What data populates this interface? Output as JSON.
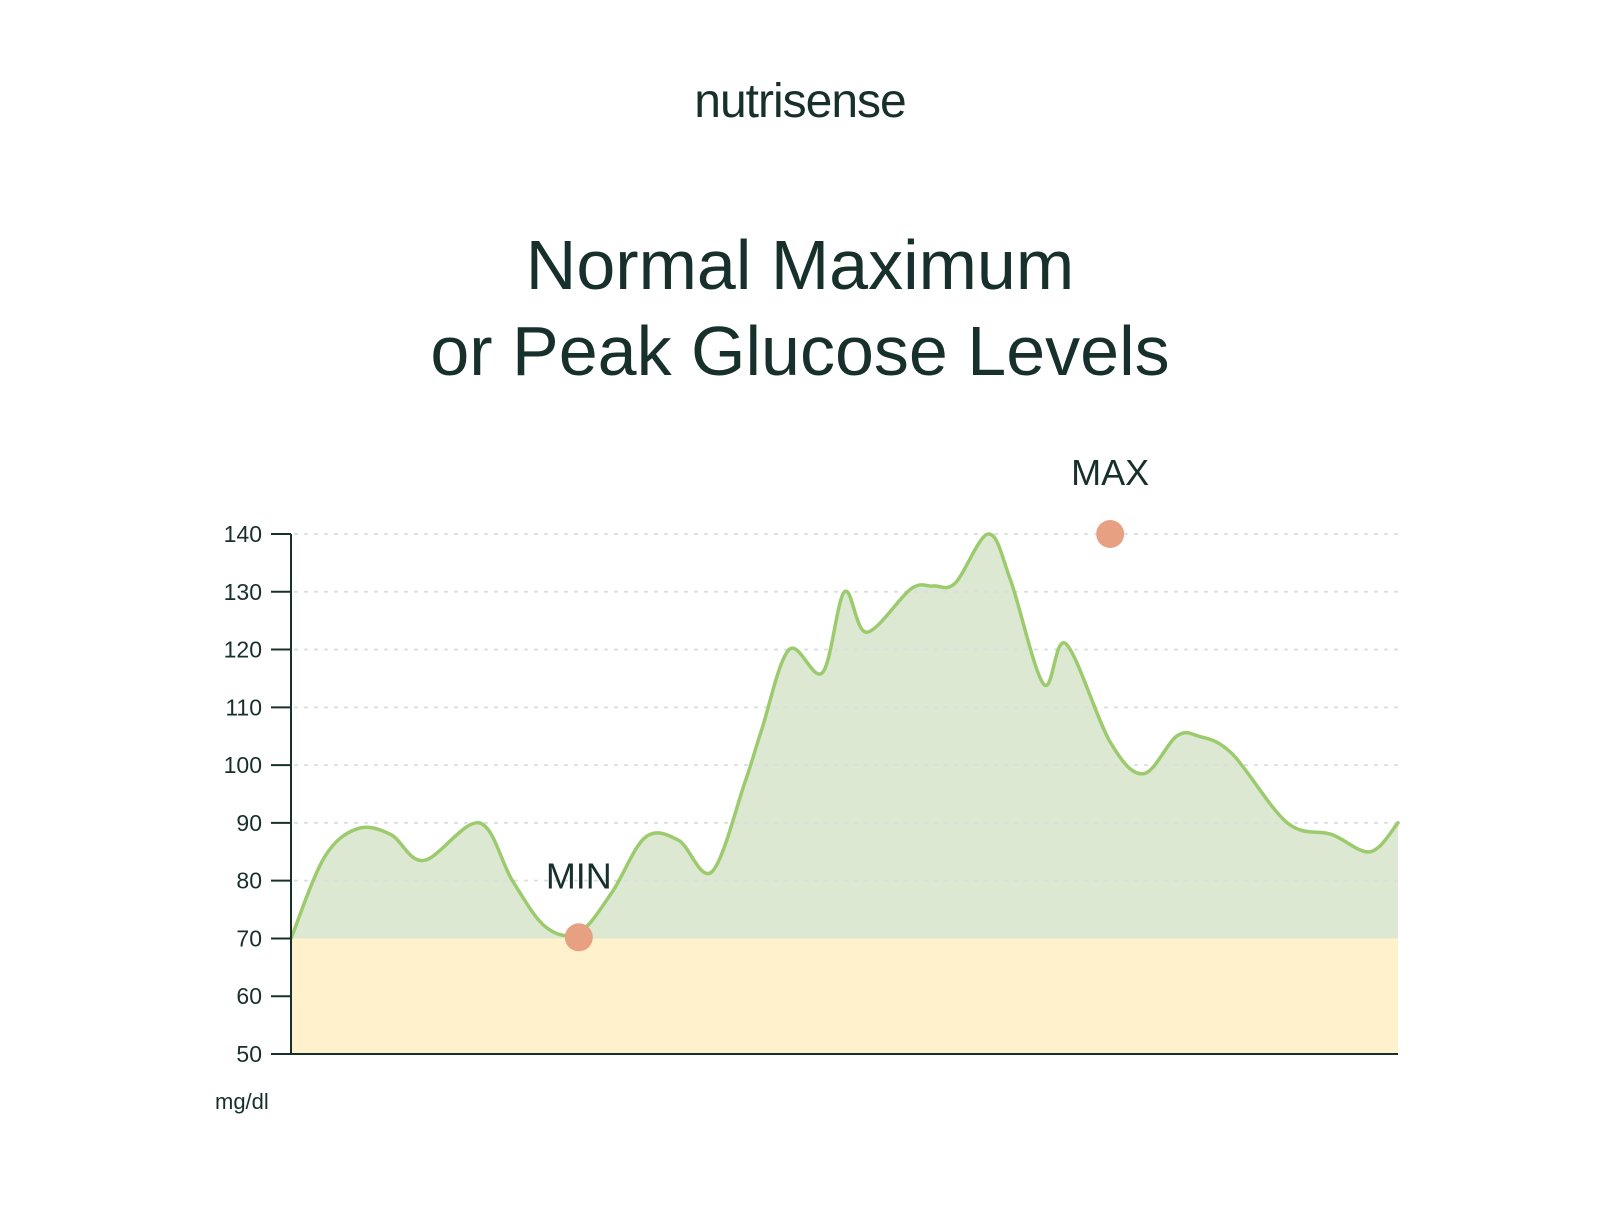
{
  "brand": {
    "logo_text": "nutrisense"
  },
  "title": {
    "line1": "Normal Maximum",
    "line2": "or Peak Glucose Levels"
  },
  "colors": {
    "text": "#17302c",
    "line": "#9ccb6e",
    "area_fill": "#dce8d2",
    "low_band": "#fef1cb",
    "marker": "#e8a083",
    "grid": "#d9dde0",
    "axis": "#17302c"
  },
  "chart_data": {
    "type": "area",
    "title": "Normal Maximum or Peak Glucose Levels",
    "xlabel": "",
    "ylabel": "",
    "unit_label": "mg/dl",
    "ylim": [
      50,
      140
    ],
    "xlim": [
      0,
      100
    ],
    "yticks": [
      140,
      130,
      120,
      110,
      100,
      90,
      80,
      70,
      60,
      50
    ],
    "grid": true,
    "band": {
      "from": 50,
      "to": 70
    },
    "series": [
      {
        "x": [
          0,
          3,
          6,
          9,
          12,
          17,
          20,
          23,
          26,
          29,
          32,
          35,
          38,
          41,
          42.5,
          45,
          48,
          50,
          52,
          56,
          58,
          60,
          63,
          65,
          68,
          70,
          74,
          77,
          80,
          82,
          85,
          90,
          94,
          97.5,
          100
        ],
        "y": [
          70,
          84,
          89,
          88,
          83.5,
          90,
          80,
          72,
          71,
          78,
          87.5,
          87,
          81.5,
          97,
          106,
          120,
          116,
          130,
          123,
          130.5,
          131,
          131.5,
          140,
          132,
          114,
          121,
          104,
          98.5,
          105,
          105,
          102,
          90,
          88,
          85,
          90
        ]
      }
    ],
    "annotations": [
      {
        "label": "MIN",
        "x": 26,
        "y": 70.2
      },
      {
        "label": "MAX",
        "x": 74,
        "y": 140
      }
    ]
  }
}
